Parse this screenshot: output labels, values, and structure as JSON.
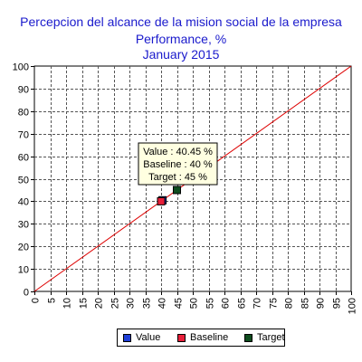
{
  "title": {
    "line1": "Percepcion del alcance de la mision social de la empresa",
    "line2": "Performance, %",
    "line3": "January 2015"
  },
  "colors": {
    "title": "#1a1acc",
    "diagonal": "#dd0000",
    "value": "#1f3fd8",
    "baseline": "#e8203a",
    "target": "#0f4d1f",
    "tooltip_bg": "#ffffe1"
  },
  "tooltip": {
    "value": "Value : 40.45 %",
    "baseline": "Baseline : 40 %",
    "target": "Target : 45 %"
  },
  "legend": {
    "value": "Value",
    "baseline": "Baseline",
    "target": "Target"
  },
  "chart_data": {
    "type": "scatter",
    "xlim": [
      0,
      100
    ],
    "ylim": [
      0,
      100
    ],
    "x_ticks": [
      0,
      5,
      10,
      15,
      20,
      25,
      30,
      35,
      40,
      45,
      50,
      55,
      60,
      65,
      70,
      75,
      80,
      85,
      90,
      95,
      100
    ],
    "y_ticks": [
      0,
      10,
      20,
      30,
      40,
      50,
      60,
      70,
      80,
      90,
      100
    ],
    "grid": true,
    "reference_line": {
      "x": [
        0,
        100
      ],
      "y": [
        0,
        100
      ]
    },
    "series": [
      {
        "name": "Value",
        "x": 40.45,
        "y": 40.45
      },
      {
        "name": "Baseline",
        "x": 40,
        "y": 40
      },
      {
        "name": "Target",
        "x": 45,
        "y": 45
      }
    ],
    "legend_position": "bottom"
  }
}
